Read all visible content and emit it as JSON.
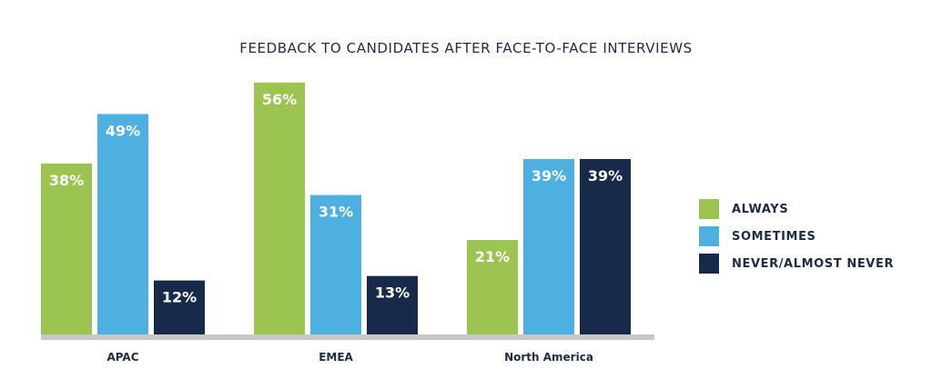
{
  "chart_data": {
    "type": "bar",
    "title": "FEEDBACK TO CANDIDATES AFTER FACE-TO-FACE INTERVIEWS",
    "categories": [
      "APAC",
      "EMEA",
      "North America"
    ],
    "series": [
      {
        "name": "ALWAYS",
        "color": "#9bc550",
        "values": [
          38,
          56,
          21
        ],
        "labels": [
          "38%",
          "56%",
          "21%"
        ]
      },
      {
        "name": "SOMETIMES",
        "color": "#4db0e1",
        "values": [
          49,
          31,
          39
        ],
        "labels": [
          "49%",
          "31%",
          "39%"
        ]
      },
      {
        "name": "NEVER/ALMOST NEVER",
        "color": "#172a49",
        "values": [
          12,
          13,
          39
        ],
        "labels": [
          "12%",
          "13%",
          "39%"
        ]
      }
    ],
    "ylim": [
      0,
      56
    ],
    "legend_position": "right",
    "grid": false,
    "baseline_color": "#c9c9c9",
    "label_color_inside": "#ffffff",
    "label_color_outside": "#1d2b45"
  }
}
